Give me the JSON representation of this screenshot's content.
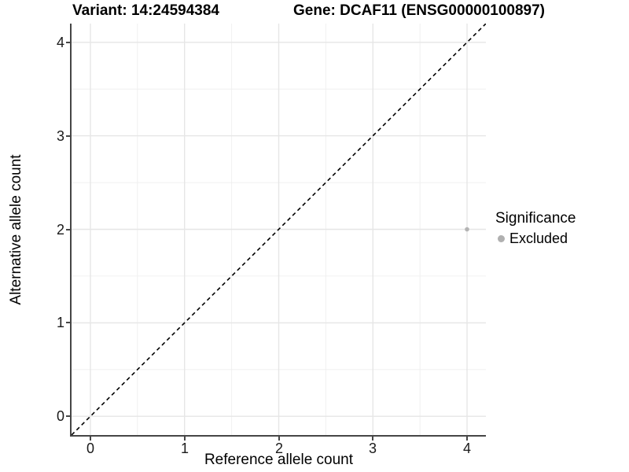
{
  "title": {
    "variant": "Variant: 14:24594384",
    "gene": "Gene: DCAF11 (ENSG00000100897)"
  },
  "chart_data": {
    "type": "scatter",
    "title": "Variant: 14:24594384   Gene: DCAF11 (ENSG00000100897)",
    "xlabel": "Reference allele count",
    "ylabel": "Alternative allele count",
    "xlim": [
      -0.2,
      4.2
    ],
    "ylim": [
      -0.2,
      4.2
    ],
    "xticks": [
      0,
      1,
      2,
      3,
      4
    ],
    "yticks": [
      0,
      1,
      2,
      3,
      4
    ],
    "xticks_minor": [
      0.5,
      1.5,
      2.5,
      3.5
    ],
    "yticks_minor": [
      0.5,
      1.5,
      2.5,
      3.5
    ],
    "grid": true,
    "identity_line": {
      "style": "dashed",
      "color": "#000000"
    },
    "points": [
      {
        "x": 4,
        "y": 2,
        "series": "Excluded",
        "color": "#b3b3b3"
      }
    ],
    "legend": {
      "title": "Significance",
      "position": "right",
      "items": [
        {
          "label": "Excluded",
          "color": "#b0b0b0",
          "marker": "circle"
        }
      ]
    }
  }
}
